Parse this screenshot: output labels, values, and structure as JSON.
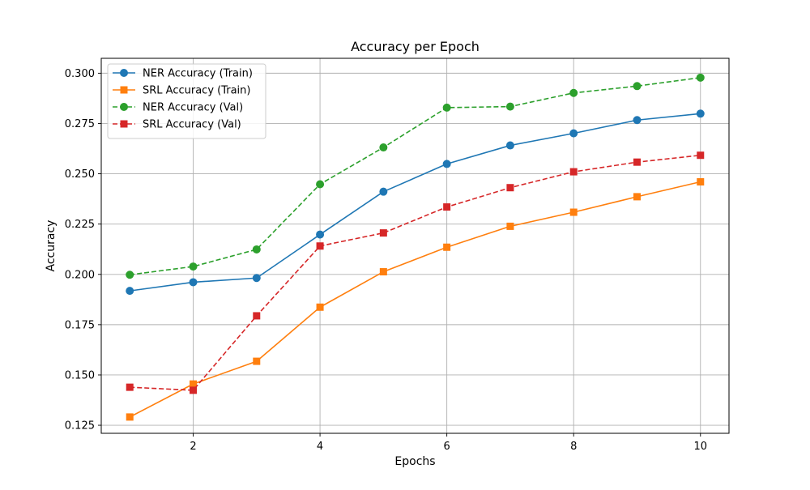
{
  "chart_data": {
    "type": "line",
    "title": "Accuracy per Epoch",
    "xlabel": "Epochs",
    "ylabel": "Accuracy",
    "x": [
      1,
      2,
      3,
      4,
      5,
      6,
      7,
      8,
      9,
      10
    ],
    "xlim": [
      0.55,
      10.45
    ],
    "ylim": [
      0.121,
      0.3074
    ],
    "x_ticks": [
      2,
      4,
      6,
      8,
      10
    ],
    "x_tick_labels": [
      "2",
      "4",
      "6",
      "8",
      "10"
    ],
    "y_ticks": [
      0.125,
      0.15,
      0.175,
      0.2,
      0.225,
      0.25,
      0.275,
      0.3
    ],
    "y_tick_labels": [
      "0.125",
      "0.150",
      "0.175",
      "0.200",
      "0.225",
      "0.250",
      "0.275",
      "0.300"
    ],
    "grid": true,
    "legend_position": "top-left",
    "series": [
      {
        "name": "NER Accuracy (Train)",
        "values": [
          0.1918,
          0.1961,
          0.1982,
          0.2198,
          0.2411,
          0.2549,
          0.2641,
          0.2701,
          0.2767,
          0.2799
        ],
        "color": "#1f77b4",
        "line_style": "solid",
        "marker": "circle"
      },
      {
        "name": "SRL Accuracy (Train)",
        "values": [
          0.1291,
          0.1455,
          0.1568,
          0.1837,
          0.2013,
          0.2135,
          0.2239,
          0.2309,
          0.2386,
          0.246
        ],
        "color": "#ff7f0e",
        "line_style": "solid",
        "marker": "square"
      },
      {
        "name": "NER Accuracy (Val)",
        "values": [
          0.1998,
          0.2039,
          0.2124,
          0.2448,
          0.2631,
          0.2829,
          0.2834,
          0.2902,
          0.2936,
          0.2978
        ],
        "color": "#2ca02c",
        "line_style": "dashed",
        "marker": "circle"
      },
      {
        "name": "SRL Accuracy (Val)",
        "values": [
          0.1439,
          0.1424,
          0.1794,
          0.2141,
          0.2206,
          0.2335,
          0.2431,
          0.251,
          0.2558,
          0.2592
        ],
        "color": "#d62728",
        "line_style": "dashed",
        "marker": "square"
      }
    ]
  }
}
